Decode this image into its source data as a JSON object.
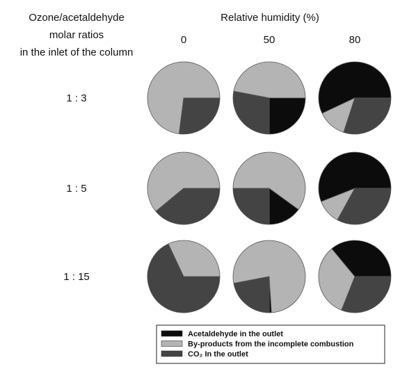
{
  "chart_data": {
    "type": "pie",
    "row_header": [
      "Ozone/acetaldehyde",
      "molar ratios",
      "in the inlet of the column"
    ],
    "column_header": "Relative humidity (%)",
    "columns": [
      "0",
      "50",
      "80"
    ],
    "rows": [
      "1:3",
      "1:5",
      "1:15"
    ],
    "categories": [
      "Acetaldehyde in the outlet",
      "By-products from the incomplete combustion",
      "CO₂ In the outlet"
    ],
    "colors": [
      "#0c0c0c",
      "#b4b4b4",
      "#444444"
    ],
    "units": "%",
    "pies": [
      {
        "row": "1:3",
        "humidity": "0",
        "values": [
          0,
          73,
          27
        ]
      },
      {
        "row": "1:3",
        "humidity": "50",
        "values": [
          25,
          47,
          28
        ]
      },
      {
        "row": "1:3",
        "humidity": "80",
        "values": [
          57,
          13,
          30
        ]
      },
      {
        "row": "1:5",
        "humidity": "0",
        "values": [
          0,
          61,
          39
        ]
      },
      {
        "row": "1:5",
        "humidity": "50",
        "values": [
          15,
          60,
          25
        ]
      },
      {
        "row": "1:5",
        "humidity": "80",
        "values": [
          56,
          11,
          33
        ]
      },
      {
        "row": "1:15",
        "humidity": "0",
        "values": [
          0,
          32,
          68
        ]
      },
      {
        "row": "1:15",
        "humidity": "50",
        "values": [
          1,
          77,
          22
        ]
      },
      {
        "row": "1:15",
        "humidity": "80",
        "values": [
          36,
          33,
          31
        ]
      }
    ]
  }
}
